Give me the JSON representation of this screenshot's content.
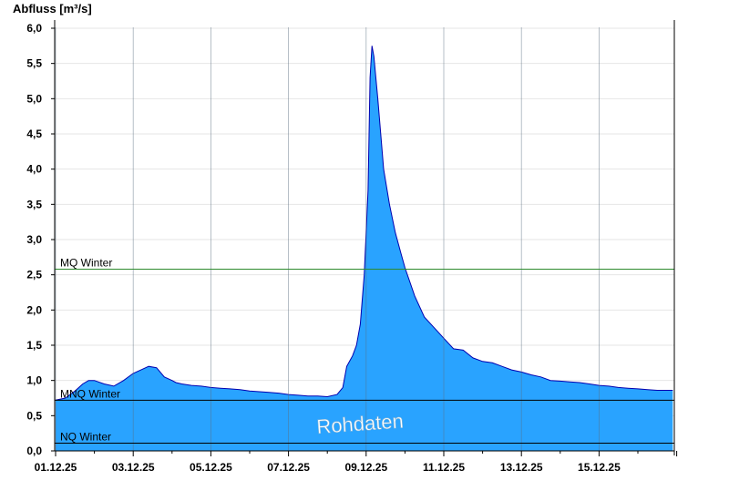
{
  "chart_data": {
    "type": "area",
    "title": "",
    "ylabel": "Abfluss [m³/s]",
    "xlabel": "",
    "ylim": [
      0,
      6.2
    ],
    "yticks": [
      "0,0",
      "0,5",
      "1,0",
      "1,5",
      "2,0",
      "2,5",
      "3,0",
      "3,5",
      "4,0",
      "4,5",
      "5,0",
      "5,5",
      "6,0"
    ],
    "xlim_days": [
      0,
      16.2
    ],
    "xticks": [
      "01.12.25",
      "03.12.25",
      "05.12.25",
      "07.12.25",
      "09.12.25",
      "11.12.25",
      "13.12.25",
      "15.12.25"
    ],
    "grid": true,
    "colors": {
      "fill": "#29a3ff",
      "line": "#0000b0",
      "mq": "#2e8b2e",
      "ref": "#000000"
    },
    "series": [
      {
        "x": [
          0,
          0.25,
          0.5,
          0.7,
          0.85,
          1.0,
          1.25,
          1.5,
          1.75,
          2.0,
          2.2,
          2.4,
          2.6,
          2.8,
          3.0,
          3.1,
          3.25,
          3.5,
          3.75,
          4.0,
          4.25,
          4.5,
          4.75,
          5.0,
          5.25,
          5.5,
          5.75,
          6.0,
          6.25,
          6.5,
          6.75,
          7.0,
          7.25,
          7.4,
          7.5,
          7.65,
          7.75,
          7.85,
          7.95,
          8.05,
          8.1,
          8.15,
          8.2,
          8.3,
          8.45,
          8.6,
          8.75,
          8.9,
          9.0,
          9.25,
          9.5,
          9.75,
          10.0,
          10.25,
          10.5,
          10.75,
          11.0,
          11.25,
          11.5,
          11.75,
          12.0,
          12.25,
          12.5,
          12.75,
          13.0,
          13.25,
          13.5,
          13.75,
          14.0,
          14.25,
          14.5,
          14.75,
          15.0,
          15.25,
          15.5,
          15.75,
          15.9
        ],
        "y": [
          0.72,
          0.75,
          0.85,
          0.95,
          1.0,
          1.0,
          0.95,
          0.92,
          1.0,
          1.1,
          1.15,
          1.2,
          1.18,
          1.05,
          1.0,
          0.97,
          0.95,
          0.93,
          0.92,
          0.9,
          0.89,
          0.88,
          0.87,
          0.85,
          0.84,
          0.83,
          0.82,
          0.8,
          0.79,
          0.78,
          0.78,
          0.77,
          0.8,
          0.9,
          1.2,
          1.35,
          1.5,
          1.8,
          2.5,
          3.7,
          5.3,
          5.75,
          5.6,
          5.0,
          4.0,
          3.5,
          3.1,
          2.8,
          2.6,
          2.2,
          1.9,
          1.75,
          1.6,
          1.45,
          1.43,
          1.32,
          1.27,
          1.25,
          1.2,
          1.15,
          1.12,
          1.08,
          1.05,
          1.0,
          0.99,
          0.98,
          0.97,
          0.95,
          0.93,
          0.92,
          0.9,
          0.89,
          0.88,
          0.87,
          0.86,
          0.86,
          0.86
        ]
      }
    ],
    "reference_lines": [
      {
        "label": "MQ Winter",
        "value": 2.58,
        "color": "#2e8b2e"
      },
      {
        "label": "MNQ Winter",
        "value": 0.72,
        "color": "#000000"
      },
      {
        "label": "NQ Winter",
        "value": 0.11,
        "color": "#000000"
      }
    ],
    "annotation": "Rohdaten"
  }
}
